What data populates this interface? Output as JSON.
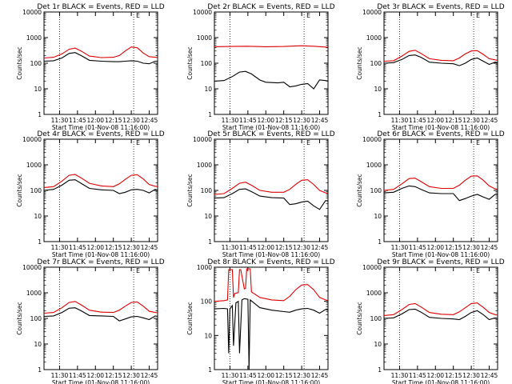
{
  "layout": {
    "x_ticks": [
      "11:30",
      "11:45",
      "12:00",
      "12:15",
      "12:30",
      "12:45"
    ],
    "y_ticks": [
      "1",
      "10",
      "100",
      "1000",
      "10000"
    ]
  },
  "colors": {
    "events": "#000000",
    "lld": "#dd0000",
    "frame": "#000000"
  },
  "chart_data": [
    {
      "type": "line",
      "title": "Det 1r  BLACK = Events, RED = LLD",
      "xlabel": "Start Time (01-Nov-08 11:16:00)",
      "ylabel": "Counts/sec",
      "y_scale": "log",
      "ylim": [
        1,
        10000
      ],
      "xlim": [
        "11:17",
        "12:52"
      ],
      "dotted_lines_x": [
        "11:30",
        "12:32"
      ],
      "flag_text": "E",
      "series": [
        {
          "name": "Events",
          "x": [
            "11:17",
            "11:25",
            "11:32",
            "11:38",
            "11:43",
            "11:48",
            "11:55",
            "12:05",
            "12:15",
            "12:20",
            "12:25",
            "12:30",
            "12:35",
            "12:40",
            "12:45",
            "12:50",
            "12:52"
          ],
          "values": [
            120,
            125,
            160,
            240,
            260,
            200,
            130,
            120,
            115,
            115,
            120,
            125,
            120,
            100,
            95,
            120,
            120
          ]
        },
        {
          "name": "LLD",
          "x": [
            "11:17",
            "11:25",
            "11:32",
            "11:38",
            "11:43",
            "11:48",
            "11:55",
            "12:05",
            "12:15",
            "12:20",
            "12:25",
            "12:30",
            "12:35",
            "12:40",
            "12:45",
            "12:50",
            "12:52"
          ],
          "values": [
            160,
            170,
            230,
            350,
            390,
            300,
            190,
            165,
            170,
            200,
            300,
            430,
            400,
            250,
            180,
            170,
            165
          ]
        }
      ]
    },
    {
      "type": "line",
      "title": "Det 2r  BLACK = Events, RED = LLD",
      "xlabel": "Start Time (01-Nov-08 11:16:00)",
      "ylabel": "Counts/sec",
      "y_scale": "log",
      "ylim": [
        1,
        10000
      ],
      "xlim": [
        "11:17",
        "12:52"
      ],
      "dotted_lines_x": [
        "11:30",
        "12:32"
      ],
      "flag_text": "E",
      "series": [
        {
          "name": "Events",
          "x": [
            "11:17",
            "11:25",
            "11:32",
            "11:38",
            "11:43",
            "11:48",
            "11:55",
            "12:00",
            "12:10",
            "12:15",
            "12:20",
            "12:25",
            "12:30",
            "12:35",
            "12:40",
            "12:45",
            "12:50",
            "12:52"
          ],
          "values": [
            20,
            21,
            30,
            45,
            48,
            38,
            22,
            18,
            17,
            18,
            12,
            13,
            15,
            16,
            10,
            22,
            21,
            20
          ]
        },
        {
          "name": "LLD",
          "x": [
            "11:17",
            "11:30",
            "11:45",
            "12:00",
            "12:15",
            "12:30",
            "12:40",
            "12:52"
          ],
          "values": [
            440,
            450,
            460,
            440,
            450,
            480,
            460,
            420
          ]
        }
      ]
    },
    {
      "type": "line",
      "title": "Det 3r  BLACK = Events, RED = LLD",
      "xlabel": "Start Time (01-Nov-08 11:16:00)",
      "ylabel": "Counts/sec",
      "y_scale": "log",
      "ylim": [
        1,
        10000
      ],
      "xlim": [
        "11:17",
        "12:52"
      ],
      "dotted_lines_x": [
        "11:30",
        "12:32"
      ],
      "flag_text": "E",
      "series": [
        {
          "name": "Events",
          "x": [
            "11:17",
            "11:25",
            "11:32",
            "11:38",
            "11:43",
            "11:48",
            "11:55",
            "12:05",
            "12:15",
            "12:20",
            "12:25",
            "12:30",
            "12:35",
            "12:40",
            "12:45",
            "12:50",
            "12:52"
          ],
          "values": [
            100,
            105,
            140,
            200,
            210,
            170,
            110,
            100,
            95,
            80,
            100,
            140,
            160,
            120,
            90,
            110,
            105
          ]
        },
        {
          "name": "LLD",
          "x": [
            "11:17",
            "11:25",
            "11:32",
            "11:38",
            "11:43",
            "11:48",
            "11:55",
            "12:05",
            "12:15",
            "12:20",
            "12:25",
            "12:30",
            "12:35",
            "12:40",
            "12:45",
            "12:50",
            "12:52"
          ],
          "values": [
            120,
            125,
            190,
            290,
            320,
            240,
            150,
            130,
            125,
            160,
            230,
            300,
            310,
            220,
            150,
            135,
            130
          ]
        }
      ]
    },
    {
      "type": "line",
      "title": "Det 4r  BLACK = Events, RED = LLD",
      "xlabel": "Start Time (01-Nov-08 11:16:00)",
      "ylabel": "Counts/sec",
      "y_scale": "log",
      "ylim": [
        1,
        10000
      ],
      "xlim": [
        "11:17",
        "12:52"
      ],
      "dotted_lines_x": [
        "11:30",
        "12:32"
      ],
      "flag_text": "E",
      "series": [
        {
          "name": "Events",
          "x": [
            "11:17",
            "11:25",
            "11:32",
            "11:38",
            "11:43",
            "11:48",
            "11:55",
            "12:05",
            "12:15",
            "12:20",
            "12:25",
            "12:30",
            "12:35",
            "12:40",
            "12:45",
            "12:50",
            "12:52"
          ],
          "values": [
            100,
            110,
            160,
            250,
            260,
            190,
            120,
            105,
            100,
            75,
            85,
            105,
            110,
            100,
            80,
            110,
            100
          ]
        },
        {
          "name": "LLD",
          "x": [
            "11:17",
            "11:25",
            "11:32",
            "11:38",
            "11:43",
            "11:48",
            "11:55",
            "12:05",
            "12:15",
            "12:20",
            "12:25",
            "12:30",
            "12:35",
            "12:40",
            "12:45",
            "12:50",
            "12:52"
          ],
          "values": [
            130,
            140,
            230,
            390,
            420,
            310,
            190,
            150,
            140,
            180,
            270,
            390,
            410,
            280,
            170,
            145,
            140
          ]
        }
      ]
    },
    {
      "type": "line",
      "title": "Det 5r  BLACK = Events, RED = LLD",
      "xlabel": "Start Time (01-Nov-08 11:16:00)",
      "ylabel": "Counts/sec",
      "y_scale": "log",
      "ylim": [
        1,
        10000
      ],
      "xlim": [
        "11:17",
        "12:52"
      ],
      "dotted_lines_x": [
        "11:30",
        "12:32"
      ],
      "flag_text": "E",
      "series": [
        {
          "name": "Events",
          "x": [
            "11:17",
            "11:25",
            "11:32",
            "11:38",
            "11:43",
            "11:48",
            "11:55",
            "12:05",
            "12:15",
            "12:20",
            "12:25",
            "12:30",
            "12:35",
            "12:40",
            "12:45",
            "12:50",
            "12:52"
          ],
          "values": [
            50,
            52,
            75,
            110,
            115,
            90,
            60,
            52,
            50,
            28,
            30,
            35,
            38,
            25,
            18,
            40,
            38
          ]
        },
        {
          "name": "LLD",
          "x": [
            "11:17",
            "11:25",
            "11:32",
            "11:38",
            "11:43",
            "11:48",
            "11:55",
            "12:05",
            "12:15",
            "12:20",
            "12:25",
            "12:30",
            "12:35",
            "12:40",
            "12:45",
            "12:50",
            "12:52"
          ],
          "values": [
            70,
            75,
            120,
            190,
            210,
            160,
            100,
            85,
            85,
            110,
            170,
            250,
            260,
            170,
            100,
            80,
            75
          ]
        }
      ]
    },
    {
      "type": "line",
      "title": "Det 6r  BLACK = Events, RED = LLD",
      "xlabel": "Start Time (01-Nov-08 11:16:00)",
      "ylabel": "Counts/sec",
      "y_scale": "log",
      "ylim": [
        1,
        10000
      ],
      "xlim": [
        "11:17",
        "12:52"
      ],
      "dotted_lines_x": [
        "11:30",
        "12:32"
      ],
      "flag_text": "E",
      "series": [
        {
          "name": "Events",
          "x": [
            "11:17",
            "11:25",
            "11:32",
            "11:38",
            "11:43",
            "11:48",
            "11:55",
            "12:05",
            "12:15",
            "12:20",
            "12:25",
            "12:30",
            "12:35",
            "12:40",
            "12:45",
            "12:50",
            "12:52"
          ],
          "values": [
            80,
            85,
            120,
            150,
            140,
            110,
            80,
            75,
            75,
            40,
            48,
            60,
            70,
            55,
            45,
            70,
            68
          ]
        },
        {
          "name": "LLD",
          "x": [
            "11:17",
            "11:25",
            "11:32",
            "11:38",
            "11:43",
            "11:48",
            "11:55",
            "12:05",
            "12:15",
            "12:20",
            "12:25",
            "12:30",
            "12:35",
            "12:40",
            "12:45",
            "12:50",
            "12:52"
          ],
          "values": [
            100,
            110,
            180,
            290,
            300,
            220,
            140,
            120,
            120,
            160,
            250,
            360,
            370,
            250,
            150,
            115,
            110
          ]
        }
      ]
    },
    {
      "type": "line",
      "title": "Det 7r  BLACK = Events, RED = LLD",
      "xlabel": "Start Time (01-Nov-08 11:16:00)",
      "ylabel": "Counts/sec",
      "y_scale": "log",
      "ylim": [
        1,
        10000
      ],
      "xlim": [
        "11:17",
        "12:52"
      ],
      "dotted_lines_x": [
        "11:30",
        "12:32"
      ],
      "flag_text": "E",
      "series": [
        {
          "name": "Events",
          "x": [
            "11:17",
            "11:25",
            "11:32",
            "11:38",
            "11:43",
            "11:48",
            "11:55",
            "12:05",
            "12:15",
            "12:20",
            "12:25",
            "12:30",
            "12:35",
            "12:40",
            "12:45",
            "12:50",
            "12:52"
          ],
          "values": [
            120,
            125,
            170,
            250,
            260,
            200,
            130,
            125,
            120,
            80,
            95,
            115,
            120,
            105,
            90,
            125,
            120
          ]
        },
        {
          "name": "LLD",
          "x": [
            "11:17",
            "11:25",
            "11:32",
            "11:38",
            "11:43",
            "11:48",
            "11:55",
            "12:05",
            "12:15",
            "12:20",
            "12:25",
            "12:30",
            "12:35",
            "12:40",
            "12:45",
            "12:50",
            "12:52"
          ],
          "values": [
            160,
            170,
            260,
            420,
            460,
            340,
            210,
            175,
            170,
            210,
            300,
            420,
            440,
            300,
            190,
            170,
            165
          ]
        }
      ]
    },
    {
      "type": "line",
      "title": "Det 8r  BLACK = Events, RED = LLD",
      "xlabel": "Start Time (01-Nov-08 11:16:00)",
      "ylabel": "Counts/sec",
      "y_scale": "log",
      "ylim": [
        1,
        1000
      ],
      "xlim": [
        "11:17",
        "12:52"
      ],
      "dotted_lines_x": [
        "11:30",
        "12:32"
      ],
      "flag_text": "E",
      "series": [
        {
          "name": "Events",
          "x": [
            "11:17",
            "11:25",
            "11:28",
            "11:29",
            "11:30",
            "11:32",
            "11:33",
            "11:35",
            "11:37",
            "11:38",
            "11:40",
            "11:42",
            "11:45",
            "11:46",
            "11:47",
            "11:50",
            "11:55",
            "12:05",
            "12:15",
            "12:20",
            "12:25",
            "12:30",
            "12:35",
            "12:40",
            "12:45",
            "12:50",
            "12:52"
          ],
          "values": [
            60,
            62,
            60,
            3,
            60,
            75,
            5,
            90,
            100,
            3,
            110,
            120,
            115,
            1,
            110,
            90,
            65,
            55,
            50,
            48,
            55,
            60,
            62,
            55,
            45,
            58,
            55
          ]
        },
        {
          "name": "LLD",
          "x": [
            "11:17",
            "11:25",
            "11:28",
            "11:29",
            "11:32",
            "11:33",
            "11:34",
            "11:37",
            "11:38",
            "11:39",
            "11:42",
            "11:43",
            "11:44",
            "11:47",
            "11:48",
            "11:50",
            "11:55",
            "12:05",
            "12:15",
            "12:20",
            "12:25",
            "12:30",
            "12:35",
            "12:40",
            "12:45",
            "12:50",
            "12:52"
          ],
          "values": [
            100,
            105,
            110,
            850,
            850,
            130,
            170,
            180,
            850,
            850,
            230,
            240,
            900,
            900,
            190,
            170,
            130,
            110,
            105,
            140,
            220,
            300,
            310,
            220,
            130,
            110,
            105
          ]
        }
      ]
    },
    {
      "type": "line",
      "title": "Det 9r  BLACK = Events, RED = LLD",
      "xlabel": "Start Time (01-Nov-08 11:16:00)",
      "ylabel": "Counts/sec",
      "y_scale": "log",
      "ylim": [
        1,
        10000
      ],
      "xlim": [
        "11:17",
        "12:52"
      ],
      "dotted_lines_x": [
        "11:30",
        "12:32"
      ],
      "flag_text": "E",
      "series": [
        {
          "name": "Events",
          "x": [
            "11:17",
            "11:25",
            "11:32",
            "11:38",
            "11:43",
            "11:48",
            "11:55",
            "12:05",
            "12:15",
            "12:20",
            "12:25",
            "12:30",
            "12:35",
            "12:40",
            "12:45",
            "12:50",
            "12:52"
          ],
          "values": [
            100,
            105,
            150,
            220,
            230,
            175,
            110,
            100,
            95,
            90,
            120,
            170,
            200,
            140,
            90,
            105,
            100
          ]
        },
        {
          "name": "LLD",
          "x": [
            "11:17",
            "11:25",
            "11:32",
            "11:38",
            "11:43",
            "11:48",
            "11:55",
            "12:05",
            "12:15",
            "12:20",
            "12:25",
            "12:30",
            "12:35",
            "12:40",
            "12:45",
            "12:50",
            "12:52"
          ],
          "values": [
            130,
            140,
            220,
            350,
            380,
            280,
            170,
            145,
            140,
            180,
            260,
            380,
            400,
            270,
            170,
            140,
            135
          ]
        }
      ]
    }
  ]
}
